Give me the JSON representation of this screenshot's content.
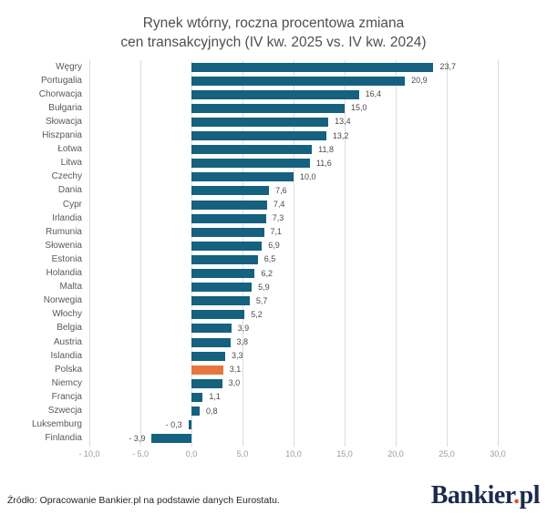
{
  "title": {
    "line1": "Rynek wtórny, roczna procentowa zmiana",
    "line2": "cen transakcyjnych (IV kw. 2025 vs. IV kw. 2024)"
  },
  "footer": {
    "source": "Źródło: Opracowanie Bankier.pl na podstawie danych Eurostatu.",
    "logo": {
      "part1": "Bankier",
      "dot": ".",
      "part2": "pl"
    }
  },
  "colors": {
    "bar": "#15617f",
    "highlight": "#e97540",
    "gridline": "#dcdcdc",
    "country_label": "#595959",
    "value_label": "#4a4a4a",
    "tick_label": "#9a9a9a",
    "logo_navy": "#1b2a4e",
    "logo_dot": "#e95420"
  },
  "chart_data": {
    "type": "bar",
    "orientation": "horizontal",
    "title": "Rynek wtórny, roczna procentowa zmiana cen transakcyjnych (IV kw. 2025 vs. IV kw. 2024)",
    "xlabel": "",
    "ylabel": "",
    "xlim": [
      -10,
      30
    ],
    "grid": true,
    "legend": false,
    "highlight_category": "Polska",
    "xticks": {
      "values": [
        -10,
        -5,
        0,
        5,
        10,
        15,
        20,
        25,
        30
      ],
      "labels": [
        "- 10,0",
        "- 5,0",
        "0,0",
        "5,0",
        "10,0",
        "15,0",
        "20,0",
        "25,0",
        "30,0"
      ]
    },
    "categories": [
      "Węgry",
      "Portugalia",
      "Chorwacja",
      "Bułgaria",
      "Słowacja",
      "Hiszpania",
      "Łotwa",
      "Litwa",
      "Czechy",
      "Dania",
      "Cypr",
      "Irlandia",
      "Rumunia",
      "Słowenia",
      "Estonia",
      "Holandia",
      "Malta",
      "Norwegia",
      "Włochy",
      "Belgia",
      "Austria",
      "Islandia",
      "Polska",
      "Niemcy",
      "Francja",
      "Szwecja",
      "Luksemburg",
      "Finlandia"
    ],
    "values": [
      23.7,
      20.9,
      16.4,
      15.0,
      13.4,
      13.2,
      11.8,
      11.6,
      10.0,
      7.6,
      7.4,
      7.3,
      7.1,
      6.9,
      6.5,
      6.2,
      5.9,
      5.7,
      5.2,
      3.9,
      3.8,
      3.3,
      3.1,
      3.0,
      1.1,
      0.8,
      -0.3,
      -3.9
    ],
    "value_labels": [
      "23,7",
      "20,9",
      "16,4",
      "15,0",
      "13,4",
      "13,2",
      "11,8",
      "11,6",
      "10,0",
      "7,6",
      "7,4",
      "7,3",
      "7,1",
      "6,9",
      "6,5",
      "6,2",
      "5,9",
      "5,7",
      "5,2",
      "3,9",
      "3,8",
      "3,3",
      "3,1",
      "3,0",
      "1,1",
      "0,8",
      "- 0,3",
      "- 3,9"
    ]
  }
}
